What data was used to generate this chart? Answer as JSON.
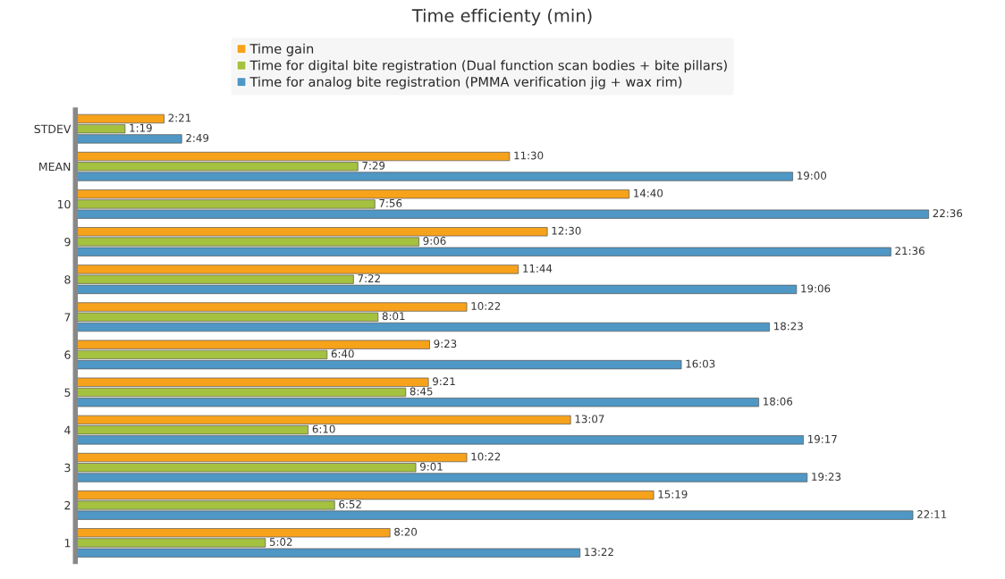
{
  "chart_data": {
    "type": "bar",
    "orientation": "horizontal",
    "title": "Time efficienty (min)",
    "categories": [
      "STDEV",
      "MEAN",
      "10",
      "9",
      "8",
      "7",
      "6",
      "5",
      "4",
      "3",
      "2",
      "1"
    ],
    "series": [
      {
        "name": "Time gain",
        "color": "#f7a21b",
        "values": [
          2.35,
          11.5,
          14.667,
          12.5,
          11.733,
          10.367,
          9.383,
          9.35,
          13.117,
          10.367,
          15.317,
          8.333
        ],
        "value_labels": [
          "2:21",
          "11:30",
          "14:40",
          "12:30",
          "11:44",
          "10:22",
          "9:23",
          "9:21",
          "13:07",
          "10:22",
          "15:19",
          "8:20"
        ]
      },
      {
        "name": "Time for digital bite registration (Dual function scan bodies + bite pillars)",
        "color": "#a4c13f",
        "values": [
          1.317,
          7.483,
          7.933,
          9.1,
          7.367,
          8.017,
          6.667,
          8.75,
          6.167,
          9.017,
          6.867,
          5.033
        ],
        "value_labels": [
          "1:19",
          "7:29",
          "7:56",
          "9:06",
          "7:22",
          "8:01",
          "6:40",
          "8:45",
          "6:10",
          "9:01",
          "6:52",
          "5:02"
        ]
      },
      {
        "name": "Time for analog bite registration (PMMA verification jig + wax rim)",
        "color": "#4f97c4",
        "values": [
          2.817,
          19.0,
          22.6,
          21.6,
          19.1,
          18.383,
          16.05,
          18.1,
          19.283,
          19.383,
          22.183,
          13.367
        ],
        "value_labels": [
          "2:49",
          "19:00",
          "22:36",
          "21:36",
          "19:06",
          "18:23",
          "16:03",
          "18:06",
          "19:17",
          "19:23",
          "22:11",
          "13:22"
        ]
      }
    ],
    "legend": "top",
    "grid": false
  }
}
